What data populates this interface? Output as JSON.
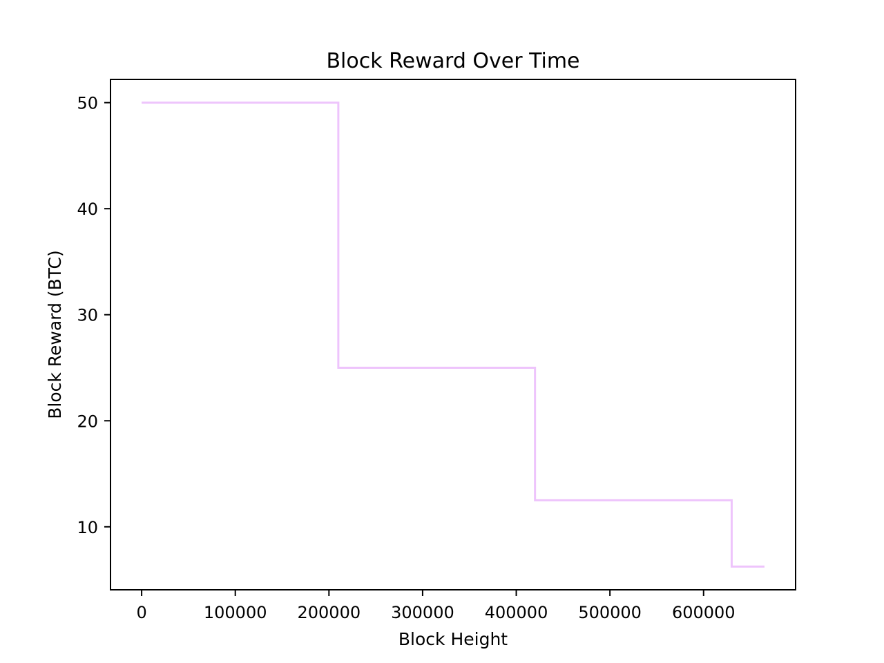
{
  "chart_data": {
    "type": "line",
    "drawstyle": "steps-post",
    "title": "Block Reward Over Time",
    "xlabel": "Block Height",
    "ylabel": "Block Reward (BTC)",
    "xlim": [
      -33250,
      698250
    ],
    "ylim": [
      4.06,
      52.19
    ],
    "xticks": [
      0,
      100000,
      200000,
      300000,
      400000,
      500000,
      600000
    ],
    "xtick_labels": [
      "0",
      "100000",
      "200000",
      "300000",
      "400000",
      "500000",
      "600000"
    ],
    "yticks": [
      10,
      20,
      30,
      40,
      50
    ],
    "ytick_labels": [
      "10",
      "20",
      "30",
      "40",
      "50"
    ],
    "grid": false,
    "legend": false,
    "series": [
      {
        "color": "#eec4fc",
        "x": [
          0,
          210000,
          420000,
          630000,
          665000
        ],
        "y": [
          50,
          25,
          12.5,
          6.25,
          6.25
        ]
      }
    ]
  }
}
